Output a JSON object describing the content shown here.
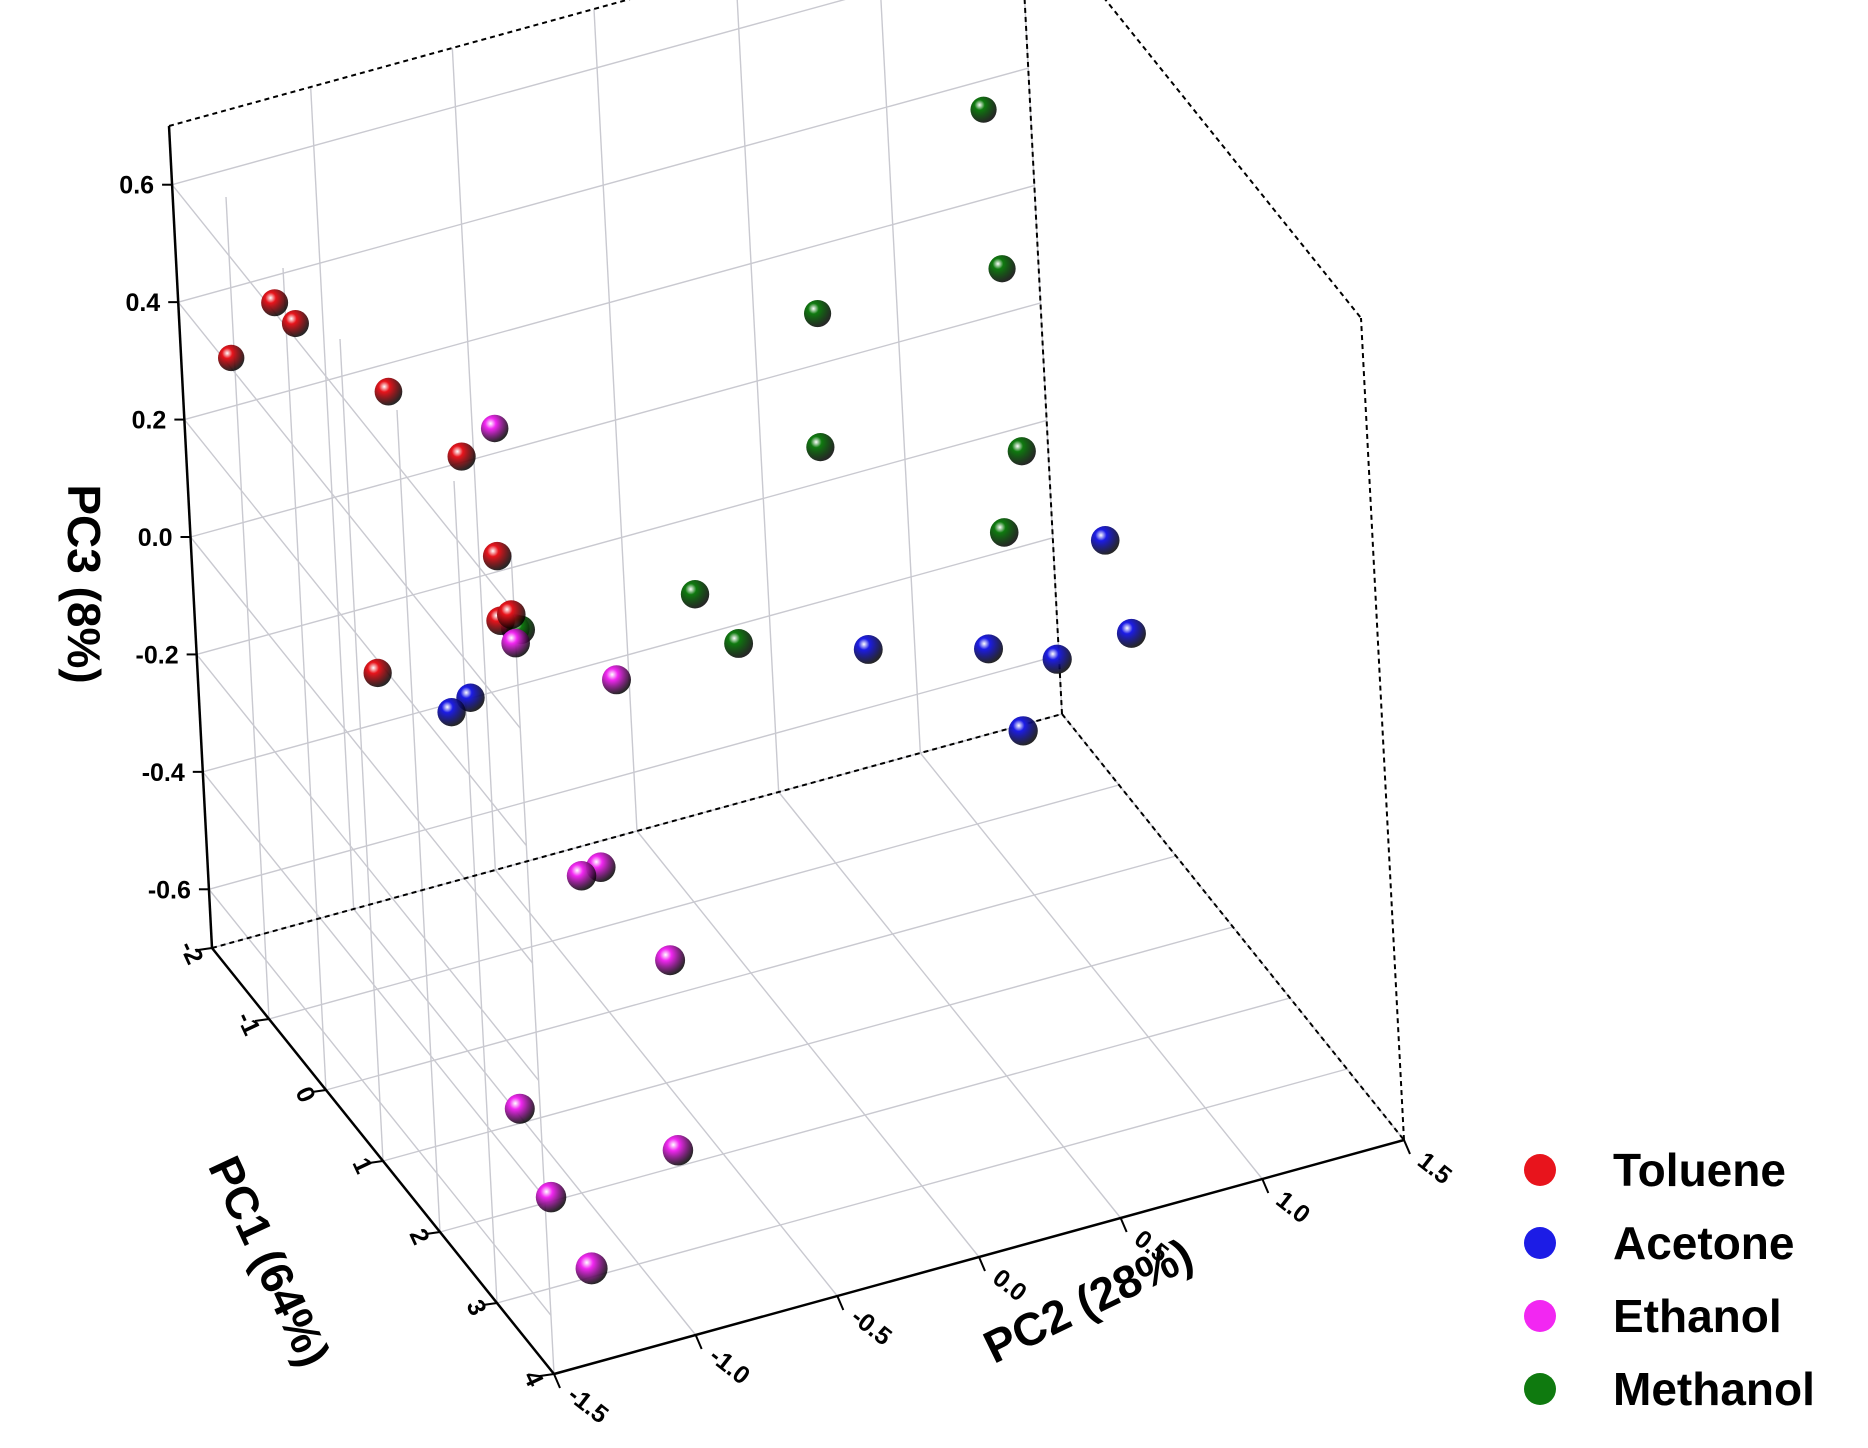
{
  "chart_data": {
    "type": "scatter3d",
    "title": "",
    "xlabel": "PC1 (64%)",
    "ylabel": "PC2 (28%)",
    "zlabel": "PC3 (8%)",
    "xlim": [
      -2,
      4
    ],
    "ylim": [
      -1.5,
      1.5
    ],
    "zlim": [
      -0.7,
      0.7
    ],
    "x_ticks": [
      "-2",
      "-1",
      "0",
      "1",
      "2",
      "3",
      "4"
    ],
    "y_ticks": [
      "-1.5",
      "-1.0",
      "-0.5",
      "0.0",
      "0.5",
      "1.0",
      "1.5"
    ],
    "z_ticks": [
      "-0.6",
      "-0.4",
      "-0.2",
      "0.0",
      "0.2",
      "0.4",
      "0.6"
    ],
    "grid": true,
    "legend_position": "bottom-right",
    "series": [
      {
        "name": "Toluene",
        "color": "#e8141c",
        "points": [
          [
            -1.0,
            -1.35,
            0.5
          ],
          [
            -0.9,
            -1.3,
            0.47
          ],
          [
            -0.3,
            -1.1,
            0.4
          ],
          [
            -1.6,
            -1.4,
            0.34
          ],
          [
            0.2,
            -0.95,
            0.33
          ],
          [
            0.5,
            -0.9,
            0.19
          ],
          [
            0.6,
            -0.88,
            0.1
          ],
          [
            0.5,
            -0.9,
            0.08
          ],
          [
            0.3,
            -1.3,
            0.02
          ]
        ]
      },
      {
        "name": "Acetone",
        "color": "#1c1ce6",
        "points": [
          [
            0.4,
            -1.0,
            -0.05
          ],
          [
            0.3,
            -1.05,
            -0.08
          ],
          [
            0.9,
            0.3,
            -0.08
          ],
          [
            1.0,
            0.7,
            -0.12
          ],
          [
            1.2,
            0.9,
            -0.14
          ],
          [
            0.6,
            1.2,
            -0.05
          ],
          [
            1.0,
            1.2,
            -0.16
          ],
          [
            1.3,
            0.75,
            -0.23
          ]
        ]
      },
      {
        "name": "Ethanol",
        "color": "#f227f2",
        "points": [
          [
            -0.5,
            -0.7,
            0.26
          ],
          [
            0.5,
            -0.85,
            0.06
          ],
          [
            0.6,
            -0.87,
            0.05
          ],
          [
            1.0,
            -0.6,
            0.0
          ],
          [
            1.6,
            -0.8,
            -0.22
          ],
          [
            1.5,
            -0.85,
            -0.24
          ],
          [
            2.0,
            -0.65,
            -0.35
          ],
          [
            2.5,
            -0.75,
            -0.6
          ],
          [
            2.0,
            -1.2,
            -0.53
          ],
          [
            2.5,
            -1.2,
            -0.62
          ],
          [
            4.0,
            -1.35,
            -0.54
          ]
        ]
      },
      {
        "name": "Methanol",
        "color": "#0f7a0f",
        "points": [
          [
            0.6,
            -0.85,
            0.07
          ],
          [
            0.4,
            -0.2,
            0.02
          ],
          [
            0.9,
            -0.15,
            -0.01
          ],
          [
            0.2,
            0.3,
            0.18
          ],
          [
            -0.8,
            0.5,
            0.26
          ],
          [
            0.6,
            0.85,
            0.01
          ],
          [
            0.2,
            1.0,
            0.08
          ],
          [
            -0.8,
            1.15,
            0.25
          ],
          [
            -1.8,
            1.3,
            0.38
          ]
        ]
      }
    ]
  },
  "legend": {
    "items": [
      {
        "label": "Toluene",
        "color": "#e8141c"
      },
      {
        "label": "Acetone",
        "color": "#1c1ce6"
      },
      {
        "label": "Ethanol",
        "color": "#f227f2"
      },
      {
        "label": "Methanol",
        "color": "#0f7a0f"
      }
    ]
  }
}
